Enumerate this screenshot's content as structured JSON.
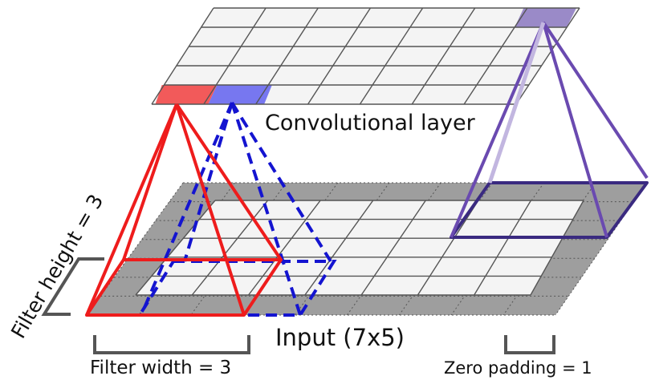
{
  "labels": {
    "conv_layer": "Convolutional layer",
    "input": "Input (7x5)",
    "filter_height": "Filter height = 3",
    "filter_width": "Filter width = 3",
    "zero_padding": "Zero padding = 1"
  },
  "grids": {
    "conv_layer": {
      "columns": 7,
      "rows": 5
    },
    "input": {
      "columns": 7,
      "rows": 5,
      "zero_padding": 1
    }
  },
  "colors": {
    "grid_line": "#555555",
    "cell_fill": "#f4f4f4",
    "padding_fill": "#9e9e9e",
    "red_filter": "#ee1c1c",
    "red_cell": "#f25a5a",
    "blue_filter": "#1414d0",
    "blue_cell": "#7777f0",
    "purple_filter": "#5a3aa0",
    "purple_cell": "#9a8ac8"
  }
}
